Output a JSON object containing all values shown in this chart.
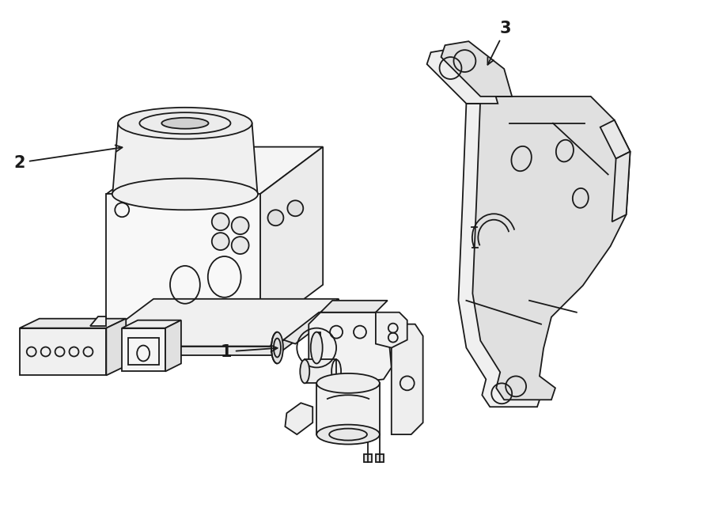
{
  "background_color": "#ffffff",
  "line_color": "#1a1a1a",
  "text_color": "#1a1a1a",
  "label1": "1",
  "label2": "2",
  "label3": "3",
  "figsize": [
    9.0,
    6.61
  ],
  "dpi": 100,
  "lw": 1.3
}
